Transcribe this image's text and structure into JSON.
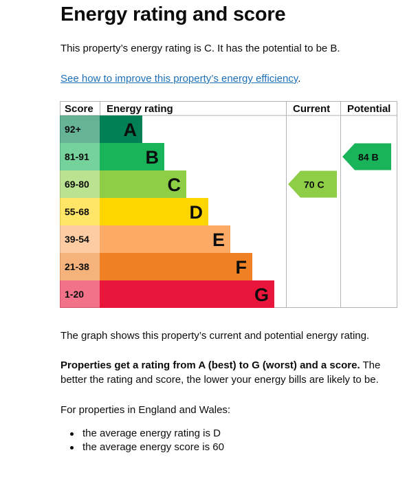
{
  "page_title": "Energy rating and score",
  "intro": "This property’s energy rating is C. It has the potential to be B.",
  "improve_link": {
    "text": "See how to improve this property’s energy efficiency",
    "suffix": "."
  },
  "chart_data": {
    "type": "table",
    "columns": [
      "Score",
      "Energy rating",
      "Current",
      "Potential"
    ],
    "bands": [
      {
        "score": "92+",
        "letter": "A",
        "color": "#008054"
      },
      {
        "score": "81-91",
        "letter": "B",
        "color": "#19b459"
      },
      {
        "score": "69-80",
        "letter": "C",
        "color": "#8dce46"
      },
      {
        "score": "55-68",
        "letter": "D",
        "color": "#ffd500"
      },
      {
        "score": "39-54",
        "letter": "E",
        "color": "#fcaa65"
      },
      {
        "score": "21-38",
        "letter": "F",
        "color": "#ef8023"
      },
      {
        "score": "1-20",
        "letter": "G",
        "color": "#e9153b"
      }
    ],
    "current": {
      "score": 70,
      "letter": "C",
      "label": "70 C",
      "color": "#8dce46"
    },
    "potential": {
      "score": 84,
      "letter": "B",
      "label": "84 B",
      "color": "#19b459"
    }
  },
  "graph_note": "The graph shows this property’s current and potential energy rating.",
  "rating_explain": {
    "bold": "Properties get a rating from A (best) to G (worst) and a score.",
    "rest": " The better the rating and score, the lower your energy bills are likely to be."
  },
  "region_note": "For properties in England and Wales:",
  "averages": [
    "the average energy rating is D",
    "the average energy score is 60"
  ]
}
